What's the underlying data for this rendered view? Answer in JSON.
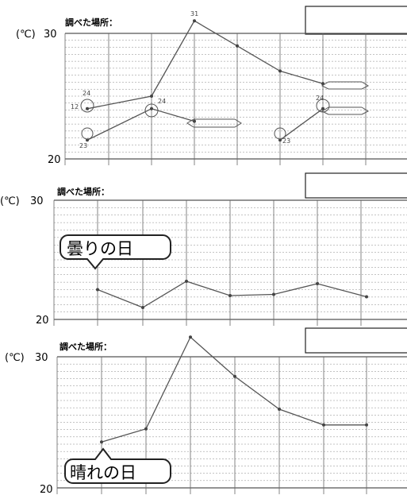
{
  "chart_data": [
    {
      "type": "line",
      "place_label": "調べた場所：",
      "y_unit": "(℃)",
      "y_ticks": [
        "20",
        "30"
      ],
      "ylim": [
        20,
        30
      ],
      "grid": true,
      "series": [
        {
          "values": [
            24,
            25,
            31,
            29,
            27,
            26
          ]
        },
        {
          "values": [
            21.5,
            24,
            23,
            null,
            21.5,
            24
          ]
        }
      ],
      "annotations": [
        "24",
        "12",
        "24",
        "31",
        "23",
        "23",
        "24"
      ]
    },
    {
      "type": "line",
      "place_label": "調べた場所：",
      "y_unit": "(℃)",
      "y_ticks": [
        "20",
        "30"
      ],
      "ylim": [
        20,
        30
      ],
      "grid": true,
      "callout": "曇りの日",
      "series": [
        {
          "values": [
            22.5,
            21,
            23.2,
            22,
            22.1,
            23,
            21.9
          ]
        }
      ]
    },
    {
      "type": "line",
      "place_label": "調べた場所：",
      "y_unit": "(℃)",
      "y_ticks": [
        "20",
        "30"
      ],
      "ylim": [
        20,
        30
      ],
      "grid": true,
      "callout": "晴れの日",
      "series": [
        {
          "values": [
            23.5,
            24.5,
            31.5,
            28.5,
            26,
            24.8,
            24.8
          ]
        }
      ]
    }
  ]
}
